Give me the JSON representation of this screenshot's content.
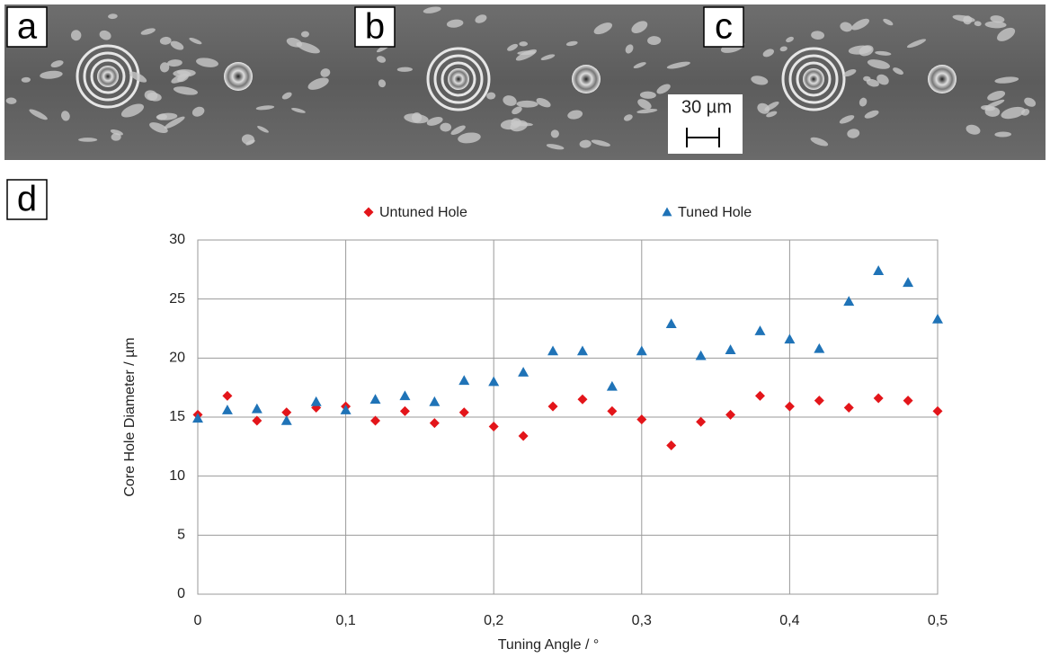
{
  "panels": {
    "labels": [
      "a",
      "b",
      "c",
      "d"
    ]
  },
  "scale_bar": "30 µm",
  "chart_data": {
    "type": "scatter",
    "x_label": "Tuning Angle / °",
    "y_label": "Core Hole Diameter / µm",
    "x": [
      0,
      0.02,
      0.04,
      0.06,
      0.08,
      0.1,
      0.12,
      0.14,
      0.16,
      0.18,
      0.2,
      0.22,
      0.24,
      0.26,
      0.28,
      0.3,
      0.32,
      0.34,
      0.36,
      0.38,
      0.4,
      0.42,
      0.44,
      0.46,
      0.48,
      0.5
    ],
    "series": [
      {
        "name": "Untuned Hole",
        "color": "#e3151a",
        "marker": "diamond",
        "values": [
          15.2,
          16.8,
          14.7,
          15.4,
          15.8,
          15.9,
          14.7,
          15.5,
          14.5,
          15.4,
          14.2,
          13.4,
          15.9,
          16.5,
          15.5,
          14.8,
          12.6,
          14.6,
          15.2,
          16.8,
          15.9,
          16.4,
          15.8,
          16.6,
          16.4,
          15.5
        ]
      },
      {
        "name": "Tuned Hole",
        "color": "#1f73b7",
        "marker": "triangle",
        "values": [
          14.9,
          15.6,
          15.7,
          14.7,
          16.3,
          15.6,
          16.5,
          16.8,
          16.3,
          18.1,
          18.0,
          18.8,
          20.6,
          20.6,
          17.6,
          20.6,
          22.9,
          20.2,
          20.7,
          22.3,
          21.6,
          20.8,
          24.8,
          27.4,
          26.4,
          23.3
        ]
      }
    ],
    "xlim": [
      0,
      0.5
    ],
    "xticks": [
      0,
      {
        "value": 0.1,
        "label": "0,1"
      },
      {
        "value": 0.2,
        "label": "0,2"
      },
      {
        "value": 0.3,
        "label": "0,3"
      },
      {
        "value": 0.4,
        "label": "0,4"
      },
      {
        "value": 0.5,
        "label": "0,5"
      }
    ],
    "ylim": [
      0,
      30
    ],
    "yticks": [
      0,
      5,
      10,
      15,
      20,
      25,
      30
    ],
    "grid": true,
    "legend": "top"
  }
}
